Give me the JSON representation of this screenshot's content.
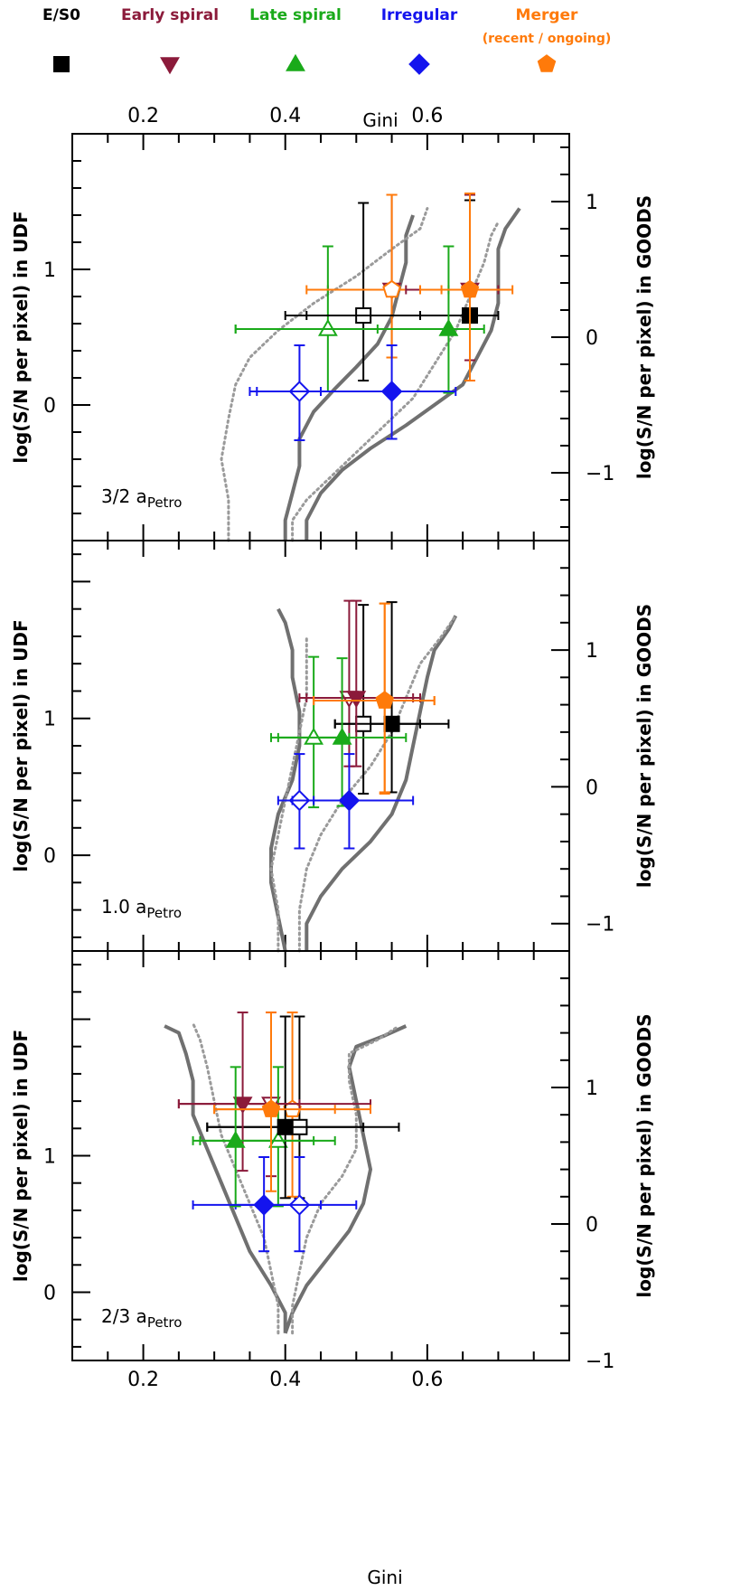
{
  "legend": {
    "items": [
      {
        "label": "E/S0",
        "color": "#000000",
        "marker": "square"
      },
      {
        "label": "Early spiral",
        "color": "#8b1a3a",
        "marker": "triangle-down"
      },
      {
        "label": "Late spiral",
        "color": "#1aaa1a",
        "marker": "triangle-up"
      },
      {
        "label": "Irregular",
        "color": "#1414ee",
        "marker": "diamond"
      },
      {
        "label": "Merger",
        "sublabel": "(recent / ongoing)",
        "color": "#ff7a0a",
        "marker": "pentagon"
      }
    ]
  },
  "chart_data": {
    "type": "scatter",
    "xlabel": "Gini",
    "ylabel_left": "log(S/N per pixel) in UDF",
    "ylabel_right": "log(S/N per pixel) in GOODS",
    "xlim": [
      0.1,
      0.8
    ],
    "x_ticks": [
      "0.2",
      "0.4",
      "0.6"
    ],
    "y_ticks_left": [
      "0",
      "1"
    ],
    "y_ticks_right": [
      "−1",
      "0",
      "1"
    ],
    "curve_color": "#707070",
    "panels": [
      {
        "label_main": "3/2 a",
        "label_sub": "Petro",
        "ylim": [
          -1.0,
          2.0
        ],
        "udf_points": [
          {
            "cls": "E/S0",
            "x": 0.51,
            "y": 0.66,
            "xlo": 0.4,
            "xhi": 0.59,
            "ylo": 0.18,
            "yhi": 1.49
          },
          {
            "cls": "Early spiral",
            "x": 0.55,
            "y": 0.85,
            "xlo": 0.46,
            "xhi": 0.63,
            "ylo": 0.35,
            "yhi": 1.55
          },
          {
            "cls": "Late spiral",
            "x": 0.46,
            "y": 0.56,
            "xlo": 0.33,
            "xhi": 0.53,
            "ylo": 0.1,
            "yhi": 1.17
          },
          {
            "cls": "Irregular",
            "x": 0.42,
            "y": 0.1,
            "xlo": 0.35,
            "xhi": 0.45,
            "ylo": -0.26,
            "yhi": 0.44
          },
          {
            "cls": "Merger",
            "x": 0.55,
            "y": 0.85,
            "xlo": 0.43,
            "xhi": 0.62,
            "ylo": 0.35,
            "yhi": 1.55
          }
        ],
        "goods_points": [
          {
            "cls": "E/S0",
            "x": 0.66,
            "y": 0.66,
            "xlo": 0.43,
            "xhi": 0.7,
            "ylo": 0.18,
            "yhi": 1.51
          },
          {
            "cls": "Early spiral",
            "x": 0.66,
            "y": 0.85,
            "xlo": 0.57,
            "xhi": 0.7,
            "ylo": 0.33,
            "yhi": 1.55
          },
          {
            "cls": "Late spiral",
            "x": 0.63,
            "y": 0.56,
            "xlo": 0.33,
            "xhi": 0.68,
            "ylo": 0.09,
            "yhi": 1.17
          },
          {
            "cls": "Irregular",
            "x": 0.55,
            "y": 0.1,
            "xlo": 0.36,
            "xhi": 0.64,
            "ylo": -0.25,
            "yhi": 0.44
          },
          {
            "cls": "Merger",
            "x": 0.66,
            "y": 0.85,
            "xlo": 0.59,
            "xhi": 0.72,
            "ylo": 0.18,
            "yhi": 1.56
          }
        ],
        "curve_solid_left": [
          [
            0.4,
            -1.0
          ],
          [
            0.4,
            -0.85
          ],
          [
            0.41,
            -0.65
          ],
          [
            0.42,
            -0.45
          ],
          [
            0.42,
            -0.25
          ],
          [
            0.44,
            -0.05
          ],
          [
            0.47,
            0.12
          ],
          [
            0.5,
            0.28
          ],
          [
            0.53,
            0.45
          ],
          [
            0.55,
            0.65
          ],
          [
            0.56,
            0.85
          ],
          [
            0.57,
            1.05
          ],
          [
            0.57,
            1.25
          ],
          [
            0.58,
            1.4
          ]
        ],
        "curve_solid_right": [
          [
            0.43,
            -1.0
          ],
          [
            0.43,
            -0.85
          ],
          [
            0.45,
            -0.65
          ],
          [
            0.48,
            -0.48
          ],
          [
            0.52,
            -0.32
          ],
          [
            0.57,
            -0.15
          ],
          [
            0.61,
            0.0
          ],
          [
            0.65,
            0.15
          ],
          [
            0.67,
            0.35
          ],
          [
            0.69,
            0.55
          ],
          [
            0.7,
            0.75
          ],
          [
            0.7,
            0.95
          ],
          [
            0.7,
            1.15
          ],
          [
            0.71,
            1.3
          ],
          [
            0.73,
            1.45
          ]
        ],
        "curve_dotted_left": [
          [
            0.32,
            -1.0
          ],
          [
            0.32,
            -0.7
          ],
          [
            0.31,
            -0.4
          ],
          [
            0.32,
            -0.1
          ],
          [
            0.33,
            0.15
          ],
          [
            0.35,
            0.35
          ],
          [
            0.39,
            0.55
          ],
          [
            0.44,
            0.75
          ],
          [
            0.5,
            0.95
          ],
          [
            0.55,
            1.15
          ],
          [
            0.59,
            1.3
          ],
          [
            0.6,
            1.45
          ]
        ],
        "curve_dotted_right": [
          [
            0.41,
            -1.0
          ],
          [
            0.41,
            -0.85
          ],
          [
            0.43,
            -0.7
          ],
          [
            0.46,
            -0.55
          ],
          [
            0.5,
            -0.35
          ],
          [
            0.54,
            -0.15
          ],
          [
            0.58,
            0.05
          ],
          [
            0.61,
            0.3
          ],
          [
            0.64,
            0.55
          ],
          [
            0.66,
            0.8
          ],
          [
            0.68,
            1.05
          ],
          [
            0.69,
            1.25
          ],
          [
            0.7,
            1.35
          ]
        ]
      },
      {
        "label_main": "1.0 a",
        "label_sub": "Petro",
        "ylim": [
          -0.7,
          2.3
        ],
        "udf_points": [
          {
            "cls": "E/S0",
            "x": 0.51,
            "y": 0.96,
            "xlo": 0.47,
            "xhi": 0.59,
            "ylo": 0.45,
            "yhi": 1.83
          },
          {
            "cls": "Early spiral",
            "x": 0.49,
            "y": 1.15,
            "xlo": 0.42,
            "xhi": 0.59,
            "ylo": 0.65,
            "yhi": 1.86
          },
          {
            "cls": "Late spiral",
            "x": 0.44,
            "y": 0.86,
            "xlo": 0.39,
            "xhi": 0.49,
            "ylo": 0.35,
            "yhi": 1.45
          },
          {
            "cls": "Irregular",
            "x": 0.42,
            "y": 0.4,
            "xlo": 0.39,
            "xhi": 0.44,
            "ylo": 0.05,
            "yhi": 0.74
          },
          {
            "cls": "Merger",
            "x": 0.54,
            "y": 1.13,
            "xlo": 0.44,
            "xhi": 0.61,
            "ylo": 0.45,
            "yhi": 1.84
          }
        ],
        "goods_points": [
          {
            "cls": "E/S0",
            "x": 0.55,
            "y": 0.96,
            "xlo": 0.47,
            "xhi": 0.63,
            "ylo": 0.46,
            "yhi": 1.85
          },
          {
            "cls": "Early spiral",
            "x": 0.5,
            "y": 1.15,
            "xlo": 0.43,
            "xhi": 0.58,
            "ylo": 0.65,
            "yhi": 1.86
          },
          {
            "cls": "Late spiral",
            "x": 0.48,
            "y": 0.86,
            "xlo": 0.38,
            "xhi": 0.57,
            "ylo": 0.36,
            "yhi": 1.44
          },
          {
            "cls": "Irregular",
            "x": 0.49,
            "y": 0.4,
            "xlo": 0.41,
            "xhi": 0.58,
            "ylo": 0.05,
            "yhi": 0.74
          },
          {
            "cls": "Merger",
            "x": 0.54,
            "y": 1.13,
            "xlo": 0.44,
            "xhi": 0.61,
            "ylo": 0.46,
            "yhi": 1.84
          }
        ],
        "curve_solid_left": [
          [
            0.4,
            -0.7
          ],
          [
            0.39,
            -0.45
          ],
          [
            0.38,
            -0.2
          ],
          [
            0.38,
            0.05
          ],
          [
            0.39,
            0.3
          ],
          [
            0.41,
            0.55
          ],
          [
            0.42,
            0.8
          ],
          [
            0.42,
            1.05
          ],
          [
            0.41,
            1.3
          ],
          [
            0.41,
            1.5
          ],
          [
            0.4,
            1.7
          ],
          [
            0.39,
            1.8
          ]
        ],
        "curve_solid_right": [
          [
            0.43,
            -0.7
          ],
          [
            0.43,
            -0.5
          ],
          [
            0.45,
            -0.3
          ],
          [
            0.48,
            -0.1
          ],
          [
            0.52,
            0.1
          ],
          [
            0.55,
            0.3
          ],
          [
            0.57,
            0.55
          ],
          [
            0.58,
            0.8
          ],
          [
            0.59,
            1.05
          ],
          [
            0.6,
            1.3
          ],
          [
            0.61,
            1.5
          ],
          [
            0.63,
            1.65
          ],
          [
            0.64,
            1.75
          ]
        ],
        "curve_dotted_left": [
          [
            0.39,
            -0.7
          ],
          [
            0.39,
            -0.4
          ],
          [
            0.38,
            -0.1
          ],
          [
            0.39,
            0.15
          ],
          [
            0.4,
            0.4
          ],
          [
            0.41,
            0.65
          ],
          [
            0.42,
            0.9
          ],
          [
            0.43,
            1.15
          ],
          [
            0.43,
            1.4
          ],
          [
            0.43,
            1.6
          ]
        ],
        "curve_dotted_right": [
          [
            0.42,
            -0.7
          ],
          [
            0.42,
            -0.4
          ],
          [
            0.43,
            -0.1
          ],
          [
            0.45,
            0.15
          ],
          [
            0.48,
            0.4
          ],
          [
            0.52,
            0.65
          ],
          [
            0.55,
            0.9
          ],
          [
            0.57,
            1.15
          ],
          [
            0.59,
            1.4
          ],
          [
            0.62,
            1.6
          ],
          [
            0.64,
            1.75
          ]
        ]
      },
      {
        "label_main": "2/3 a",
        "label_sub": "Petro",
        "ylim": [
          -0.5,
          2.5
        ],
        "udf_points": [
          {
            "cls": "E/S0",
            "x": 0.42,
            "y": 1.21,
            "xlo": 0.29,
            "xhi": 0.56,
            "ylo": 0.69,
            "yhi": 2.02
          },
          {
            "cls": "Early spiral",
            "x": 0.38,
            "y": 1.38,
            "xlo": 0.25,
            "xhi": 0.52,
            "ylo": 0.85,
            "yhi": 2.05
          },
          {
            "cls": "Late spiral",
            "x": 0.39,
            "y": 1.11,
            "xlo": 0.27,
            "xhi": 0.47,
            "ylo": 0.63,
            "yhi": 1.65
          },
          {
            "cls": "Irregular",
            "x": 0.42,
            "y": 0.64,
            "xlo": 0.33,
            "xhi": 0.5,
            "ylo": 0.3,
            "yhi": 0.99
          },
          {
            "cls": "Merger",
            "x": 0.41,
            "y": 1.34,
            "xlo": 0.3,
            "xhi": 0.52,
            "ylo": 0.7,
            "yhi": 2.05
          }
        ],
        "goods_points": [
          {
            "cls": "E/S0",
            "x": 0.4,
            "y": 1.21,
            "xlo": 0.29,
            "xhi": 0.51,
            "ylo": 0.69,
            "yhi": 2.02
          },
          {
            "cls": "Early spiral",
            "x": 0.34,
            "y": 1.38,
            "xlo": 0.25,
            "xhi": 0.42,
            "ylo": 0.89,
            "yhi": 2.05
          },
          {
            "cls": "Late spiral",
            "x": 0.33,
            "y": 1.11,
            "xlo": 0.28,
            "xhi": 0.44,
            "ylo": 0.63,
            "yhi": 1.65
          },
          {
            "cls": "Irregular",
            "x": 0.37,
            "y": 0.64,
            "xlo": 0.27,
            "xhi": 0.45,
            "ylo": 0.3,
            "yhi": 0.99
          },
          {
            "cls": "Merger",
            "x": 0.38,
            "y": 1.34,
            "xlo": 0.3,
            "xhi": 0.47,
            "ylo": 0.74,
            "yhi": 2.05
          }
        ],
        "curve_solid_left": [
          [
            0.4,
            -0.3
          ],
          [
            0.4,
            -0.15
          ],
          [
            0.38,
            0.05
          ],
          [
            0.35,
            0.3
          ],
          [
            0.33,
            0.55
          ],
          [
            0.31,
            0.8
          ],
          [
            0.29,
            1.05
          ],
          [
            0.27,
            1.3
          ],
          [
            0.27,
            1.55
          ],
          [
            0.26,
            1.75
          ],
          [
            0.25,
            1.9
          ],
          [
            0.23,
            1.95
          ]
        ],
        "curve_solid_right": [
          [
            0.4,
            -0.3
          ],
          [
            0.41,
            -0.15
          ],
          [
            0.43,
            0.05
          ],
          [
            0.46,
            0.25
          ],
          [
            0.49,
            0.45
          ],
          [
            0.51,
            0.65
          ],
          [
            0.52,
            0.9
          ],
          [
            0.51,
            1.15
          ],
          [
            0.5,
            1.4
          ],
          [
            0.49,
            1.65
          ],
          [
            0.5,
            1.8
          ],
          [
            0.54,
            1.88
          ],
          [
            0.57,
            1.95
          ]
        ],
        "curve_dotted_left": [
          [
            0.39,
            -0.3
          ],
          [
            0.39,
            -0.1
          ],
          [
            0.38,
            0.15
          ],
          [
            0.37,
            0.4
          ],
          [
            0.35,
            0.65
          ],
          [
            0.33,
            0.9
          ],
          [
            0.31,
            1.15
          ],
          [
            0.3,
            1.4
          ],
          [
            0.29,
            1.65
          ],
          [
            0.28,
            1.85
          ],
          [
            0.27,
            1.97
          ]
        ],
        "curve_dotted_right": [
          [
            0.41,
            -0.3
          ],
          [
            0.41,
            -0.1
          ],
          [
            0.42,
            0.15
          ],
          [
            0.43,
            0.4
          ],
          [
            0.45,
            0.65
          ],
          [
            0.48,
            0.85
          ],
          [
            0.5,
            1.05
          ],
          [
            0.5,
            1.3
          ],
          [
            0.49,
            1.55
          ],
          [
            0.49,
            1.75
          ],
          [
            0.53,
            1.85
          ],
          [
            0.56,
            1.95
          ]
        ]
      }
    ]
  }
}
